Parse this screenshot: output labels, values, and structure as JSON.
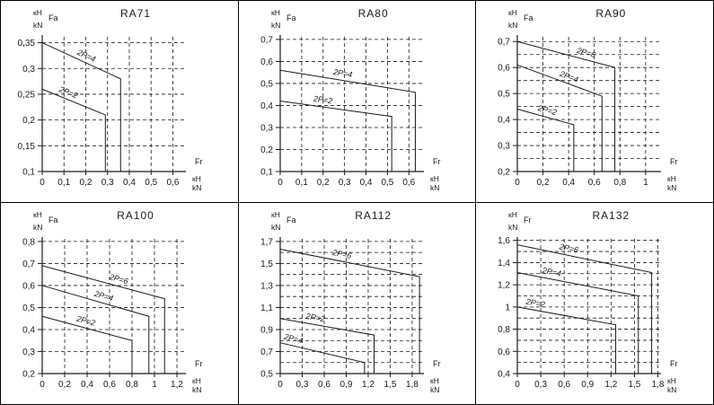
{
  "colors": {
    "line": "#1a1a1a",
    "background": "#ffffff",
    "border": "#000000"
  },
  "chart_data": [
    {
      "type": "line",
      "title": "RA71",
      "y_corner_labels": [
        "кН",
        "Fa",
        "kN"
      ],
      "x_end_labels": [
        "Fr",
        "кН",
        "kN"
      ],
      "xlim": [
        0,
        0.66
      ],
      "ylim": [
        0.1,
        0.365
      ],
      "x_ticks": {
        "values": [
          0,
          0.1,
          0.2,
          0.3,
          0.4,
          0.5,
          0.6
        ],
        "labels": [
          "0",
          "0,1",
          "0,2",
          "0,3",
          "0,4",
          "0,5",
          "0,6"
        ]
      },
      "y_ticks": {
        "values": [
          0.35,
          0.3,
          0.25,
          0.2,
          0.15,
          0.1
        ],
        "labels": [
          "0,35",
          "0,3",
          "0,25",
          "0,2",
          "0,15",
          "0,1"
        ]
      },
      "x_grid": [
        0.1,
        0.2,
        0.3,
        0.4,
        0.5,
        0.6
      ],
      "y_grid": [
        0.15,
        0.2,
        0.25,
        0.3,
        0.35
      ],
      "grid": "dashed",
      "legend": "none",
      "series": [
        {
          "name": "2P=4",
          "points": [
            [
              0,
              0.35
            ],
            [
              0.36,
              0.28
            ]
          ],
          "drop_x": 0.36,
          "label_t": 0.55
        },
        {
          "name": "2P=2",
          "points": [
            [
              0,
              0.26
            ],
            [
              0.29,
              0.21
            ]
          ],
          "drop_x": 0.29,
          "label_t": 0.4
        }
      ]
    },
    {
      "type": "line",
      "title": "RA80",
      "y_corner_labels": [
        "кН",
        "Fa",
        "kN"
      ],
      "x_end_labels": [
        "Fr",
        "кН",
        "kN"
      ],
      "xlim": [
        0,
        0.67
      ],
      "ylim": [
        0.1,
        0.72
      ],
      "x_ticks": {
        "values": [
          0,
          0.1,
          0.2,
          0.3,
          0.4,
          0.5,
          0.6
        ],
        "labels": [
          "0",
          "0,1",
          "0,2",
          "0,3",
          "0,4",
          "0,5",
          "0,6"
        ]
      },
      "y_ticks": {
        "values": [
          0.7,
          0.6,
          0.5,
          0.4,
          0.3,
          0.2,
          0.1
        ],
        "labels": [
          "0,7",
          "0,6",
          "0,5",
          "0,4",
          "0,3",
          "0,2",
          "0,1"
        ]
      },
      "x_grid": [
        0.1,
        0.2,
        0.3,
        0.4,
        0.5,
        0.6
      ],
      "y_grid": [
        0.2,
        0.3,
        0.4,
        0.5,
        0.6,
        0.7
      ],
      "grid": "dashed",
      "legend": "none",
      "series": [
        {
          "name": "2P=4",
          "points": [
            [
              0,
              0.56
            ],
            [
              0.63,
              0.46
            ]
          ],
          "drop_x": 0.63,
          "label_t": 0.46
        },
        {
          "name": "2P=2",
          "points": [
            [
              0,
              0.42
            ],
            [
              0.52,
              0.35
            ]
          ],
          "drop_x": 0.52,
          "label_t": 0.38
        }
      ]
    },
    {
      "type": "line",
      "title": "RA90",
      "y_corner_labels": [
        "кН",
        "Fa",
        "kN"
      ],
      "x_end_labels": [
        "Fr",
        "кН",
        "kN"
      ],
      "xlim": [
        0,
        1.12
      ],
      "ylim": [
        0.2,
        0.725
      ],
      "x_ticks": {
        "values": [
          0,
          0.2,
          0.4,
          0.6,
          0.8,
          1.0
        ],
        "labels": [
          "0",
          "0,2",
          "0,4",
          "0,6",
          "0,8",
          "1"
        ]
      },
      "y_ticks": {
        "values": [
          0.7,
          0.6,
          0.5,
          0.4,
          0.3,
          0.2
        ],
        "labels": [
          "0,7",
          "0,6",
          "0,5",
          "0,4",
          "0,3",
          "0,2"
        ]
      },
      "x_grid": [
        0.2,
        0.4,
        0.6,
        0.8,
        1.0
      ],
      "y_grid": [
        0.25,
        0.3,
        0.35,
        0.4,
        0.45,
        0.5,
        0.55,
        0.6,
        0.65,
        0.7
      ],
      "grid": "dashed",
      "legend": "none",
      "series": [
        {
          "name": "2P=6",
          "points": [
            [
              0,
              0.7
            ],
            [
              0.76,
              0.6
            ]
          ],
          "drop_x": 0.76,
          "label_t": 0.7
        },
        {
          "name": "2P=4",
          "points": [
            [
              0,
              0.61
            ],
            [
              0.66,
              0.49
            ]
          ],
          "drop_x": 0.66,
          "label_t": 0.6
        },
        {
          "name": "2P=2",
          "points": [
            [
              0,
              0.44
            ],
            [
              0.44,
              0.38
            ]
          ],
          "drop_x": 0.44,
          "label_t": 0.52
        }
      ]
    },
    {
      "type": "line",
      "title": "RA100",
      "y_corner_labels": [
        "кН",
        "Fa",
        "kN"
      ],
      "x_end_labels": [
        "Fr",
        "кН",
        "kN"
      ],
      "xlim": [
        0,
        1.28
      ],
      "ylim": [
        0.2,
        0.82
      ],
      "x_ticks": {
        "values": [
          0,
          0.2,
          0.4,
          0.6,
          0.8,
          1.0,
          1.2
        ],
        "labels": [
          "0",
          "0,2",
          "0,4",
          "0,6",
          "0,8",
          "1",
          "1,2"
        ]
      },
      "y_ticks": {
        "values": [
          0.8,
          0.7,
          0.6,
          0.5,
          0.4,
          0.3,
          0.2
        ],
        "labels": [
          "0,8",
          "0,7",
          "0,6",
          "0,5",
          "0,4",
          "0,3",
          "0,2"
        ]
      },
      "x_grid": [
        0.2,
        0.4,
        0.6,
        0.8,
        1.0,
        1.2
      ],
      "y_grid": [
        0.3,
        0.4,
        0.5,
        0.6,
        0.7,
        0.8
      ],
      "grid": "dashed",
      "legend": "none",
      "series": [
        {
          "name": "2P=6",
          "points": [
            [
              0,
              0.69
            ],
            [
              1.09,
              0.54
            ]
          ],
          "drop_x": 1.09,
          "label_t": 0.62
        },
        {
          "name": "2P=4",
          "points": [
            [
              0,
              0.6
            ],
            [
              0.95,
              0.46
            ]
          ],
          "drop_x": 0.95,
          "label_t": 0.57
        },
        {
          "name": "2P=2",
          "points": [
            [
              0,
              0.46
            ],
            [
              0.8,
              0.35
            ]
          ],
          "drop_x": 0.8,
          "label_t": 0.48
        }
      ]
    },
    {
      "type": "line",
      "title": "RA112",
      "y_corner_labels": [
        "кН",
        "Fa",
        "kN"
      ],
      "x_end_labels": [
        "Fr",
        "кН",
        "kN"
      ],
      "xlim": [
        0,
        1.96
      ],
      "ylim": [
        0.5,
        1.74
      ],
      "x_ticks": {
        "values": [
          0,
          0.3,
          0.6,
          0.9,
          1.2,
          1.5,
          1.8
        ],
        "labels": [
          "0",
          "0,3",
          "0,6",
          "0,9",
          "1,2",
          "1,5",
          "1,8"
        ]
      },
      "y_ticks": {
        "values": [
          1.7,
          1.5,
          1.3,
          1.1,
          0.9,
          0.7,
          0.5
        ],
        "labels": [
          "1,7",
          "1,5",
          "1,3",
          "1,1",
          "0,9",
          "0,7",
          "0,5"
        ]
      },
      "x_grid": [
        0.3,
        0.6,
        0.9,
        1.2,
        1.5,
        1.8
      ],
      "y_grid": [
        0.6,
        0.7,
        0.8,
        0.9,
        1.0,
        1.1,
        1.2,
        1.3,
        1.4,
        1.5,
        1.6,
        1.7
      ],
      "grid": "dashed",
      "legend": "none",
      "series": [
        {
          "name": "2P=6",
          "points": [
            [
              0,
              1.63
            ],
            [
              1.9,
              1.38
            ]
          ],
          "drop_x": 1.9,
          "label_t": 0.44
        },
        {
          "name": "2P=2",
          "points": [
            [
              0,
              1.0
            ],
            [
              1.28,
              0.85
            ]
          ],
          "drop_x": 1.28,
          "label_t": 0.37
        },
        {
          "name": "2P=4",
          "points": [
            [
              0,
              0.78
            ],
            [
              1.15,
              0.6
            ]
          ],
          "drop_x": 1.15,
          "label_t": 0.15
        }
      ]
    },
    {
      "type": "line",
      "title": "RA132",
      "y_corner_labels": [
        "кН",
        "Fr",
        "kN"
      ],
      "x_end_labels": [
        "Fr",
        "кН",
        "kN"
      ],
      "xlim": [
        0,
        1.84
      ],
      "ylim": [
        0.4,
        1.63
      ],
      "x_ticks": {
        "values": [
          0,
          0.3,
          0.6,
          0.9,
          1.2,
          1.5,
          1.8
        ],
        "labels": [
          "0",
          "0,3",
          "0,6",
          "0,9",
          "1,2",
          "1,5",
          "1,8"
        ]
      },
      "y_ticks": {
        "values": [
          1.6,
          1.4,
          1.2,
          1.0,
          0.8,
          0.6,
          0.4
        ],
        "labels": [
          "1,6",
          "1,4",
          "1,2",
          "1",
          "0,8",
          "0,6",
          "0,4"
        ]
      },
      "x_grid": [
        0.3,
        0.6,
        0.9,
        1.2,
        1.5,
        1.8
      ],
      "y_grid": [
        0.5,
        0.6,
        0.7,
        0.8,
        0.9,
        1.0,
        1.1,
        1.2,
        1.3,
        1.4,
        1.5,
        1.6
      ],
      "grid": "dashed",
      "legend": "none",
      "series": [
        {
          "name": "2P=6",
          "points": [
            [
              0,
              1.56
            ],
            [
              1.72,
              1.31
            ]
          ],
          "drop_x": 1.72,
          "label_t": 0.38
        },
        {
          "name": "2P=4",
          "points": [
            [
              0,
              1.31
            ],
            [
              1.55,
              1.1
            ]
          ],
          "drop_x": 1.55,
          "label_t": 0.28
        },
        {
          "name": "2P=2",
          "points": [
            [
              0,
              1.0
            ],
            [
              1.26,
              0.84
            ]
          ],
          "drop_x": 1.26,
          "label_t": 0.18
        }
      ]
    }
  ]
}
